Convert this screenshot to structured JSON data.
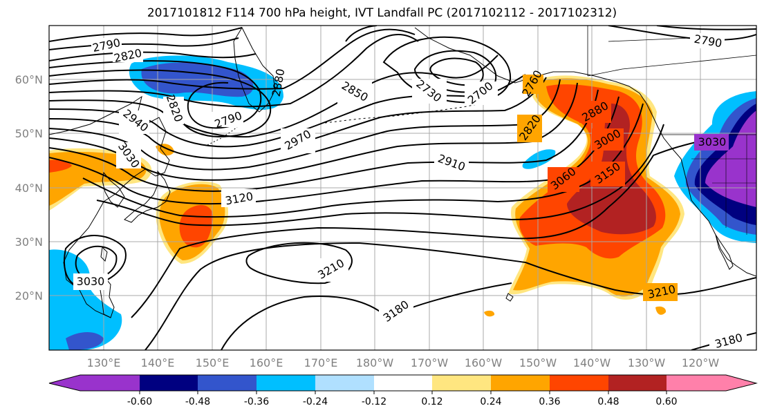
{
  "title": "2017101812 F114 700 hPa height, IVT Landfall PC (2017102112 - 2017102312)",
  "lat_labels": [
    "60°N",
    "50°N",
    "40°N",
    "30°N",
    "20°N"
  ],
  "lon_labels": [
    "130°E",
    "140°E",
    "150°E",
    "160°E",
    "170°E",
    "180°W",
    "170°W",
    "160°W",
    "150°W",
    "140°W",
    "130°W",
    "120°W"
  ],
  "colorbar": {
    "labels": [
      "-0.60",
      "-0.48",
      "-0.36",
      "-0.24",
      "-0.12",
      "0.12",
      "0.24",
      "0.36",
      "0.48",
      "0.60"
    ],
    "colors": [
      "#9933cc",
      "#000080",
      "#3355cc",
      "#00bfff",
      "#b0e0ff",
      "#ffffff",
      "#ffe680",
      "#ffa500",
      "#ff4500",
      "#b22222",
      "#ff80aa"
    ]
  },
  "contour_labels": [
    "2790",
    "2820",
    "2820",
    "2880",
    "2790",
    "2940",
    "3030",
    "2850",
    "2730",
    "2700",
    "2790",
    "2820",
    "2880",
    "3000",
    "3060",
    "3150",
    "2970",
    "2910",
    "3120",
    "3210",
    "3180",
    "3030",
    "3210",
    "3180",
    "3030",
    "2760"
  ]
}
